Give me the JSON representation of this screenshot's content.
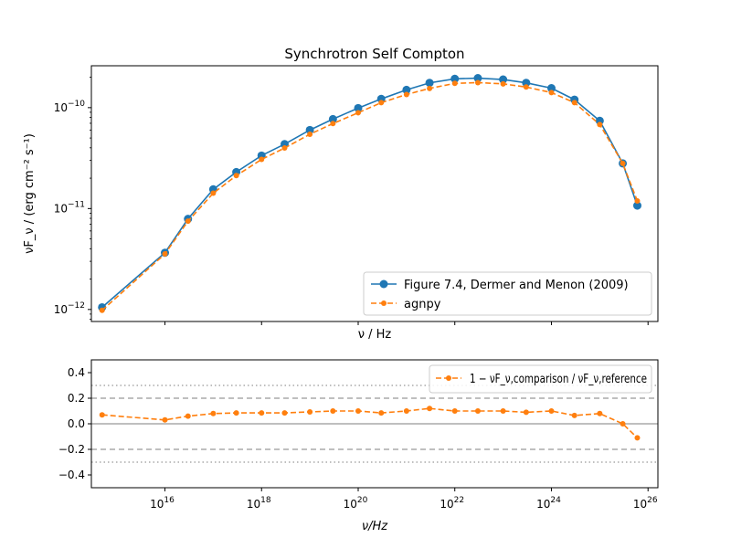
{
  "chart_data": [
    {
      "type": "line",
      "title": "Synchrotron Self Compton",
      "xlabel": "ν / Hz",
      "ylabel": "νF_ν / (erg cm⁻² s⁻¹)",
      "xscale": "log",
      "yscale": "log",
      "xlim": [
        300000000000000.0,
        1.6e+26
      ],
      "ylim": [
        7.6e-13,
        2.6e-10
      ],
      "grid": false,
      "legend_position": "lower-right",
      "x_tick_labels_shown": false,
      "y_ticks": [
        {
          "value": 1e-12,
          "base": "10",
          "exp": "−12"
        },
        {
          "value": 1e-11,
          "base": "10",
          "exp": "−11"
        },
        {
          "value": 1e-10,
          "base": "10",
          "exp": "−10"
        }
      ],
      "series": [
        {
          "name": "Figure 7.4, Dermer and Menon (2009)",
          "color": "#1f77b4",
          "style": "solid",
          "marker": "circle",
          "x": [
            500000000000000.0,
            1e+16,
            3e+16,
            1e+17,
            3e+17,
            1e+18,
            3e+18,
            1e+19,
            3e+19,
            1e+20,
            3e+20,
            1e+21,
            3e+21,
            1e+22,
            3e+22,
            1e+23,
            3e+23,
            1e+24,
            3e+24,
            1e+25,
            3e+25,
            6e+25
          ],
          "y": [
            1.05e-12,
            3.65e-12,
            7.9e-12,
            1.55e-11,
            2.3e-11,
            3.35e-11,
            4.35e-11,
            6e-11,
            7.7e-11,
            9.9e-11,
            1.22e-10,
            1.5e-10,
            1.76e-10,
            1.93e-10,
            1.96e-10,
            1.9e-10,
            1.76e-10,
            1.56e-10,
            1.2e-10,
            7.4e-11,
            2.8e-11,
            1.07e-11
          ]
        },
        {
          "name": "agnpy",
          "color": "#ff7f0e",
          "style": "dashed",
          "marker": "circle-small",
          "x": [
            500000000000000.0,
            1e+16,
            3e+16,
            1e+17,
            3e+17,
            1e+18,
            3e+18,
            1e+19,
            3e+19,
            1e+20,
            3e+20,
            1e+21,
            3e+21,
            1e+22,
            3e+22,
            1e+23,
            3e+23,
            1e+24,
            3e+24,
            1e+25,
            3e+25,
            6e+25
          ],
          "y": [
            9.8e-13,
            3.55e-12,
            7.5e-12,
            1.42e-11,
            2.12e-11,
            3.07e-11,
            3.98e-11,
            5.45e-11,
            6.95e-11,
            8.9e-11,
            1.12e-10,
            1.35e-10,
            1.55e-10,
            1.74e-10,
            1.77e-10,
            1.72e-10,
            1.6e-10,
            1.41e-10,
            1.12e-10,
            6.8e-11,
            2.8e-11,
            1.19e-11
          ]
        }
      ]
    },
    {
      "type": "line",
      "xlabel": "ν/Hz",
      "ylabel": "",
      "xscale": "log",
      "xlim": [
        300000000000000.0,
        1.6e+26
      ],
      "ylim": [
        -0.5,
        0.5
      ],
      "legend_position": "upper-right",
      "x_ticks": [
        {
          "value": 1e+16,
          "base": "10",
          "exp": "16"
        },
        {
          "value": 1e+18,
          "base": "10",
          "exp": "18"
        },
        {
          "value": 1e+20,
          "base": "10",
          "exp": "20"
        },
        {
          "value": 1e+22,
          "base": "10",
          "exp": "22"
        },
        {
          "value": 1e+24,
          "base": "10",
          "exp": "24"
        },
        {
          "value": 1e+26,
          "base": "10",
          "exp": "26"
        }
      ],
      "y_ticks": [
        {
          "value": 0.4,
          "label": "0.4"
        },
        {
          "value": 0.2,
          "label": "0.2"
        },
        {
          "value": 0.0,
          "label": "0.0"
        },
        {
          "value": -0.2,
          "label": "−0.2"
        },
        {
          "value": -0.4,
          "label": "−0.4"
        }
      ],
      "reference_lines": [
        {
          "y": 0.0,
          "style": "solid",
          "color": "#999999"
        },
        {
          "y": 0.2,
          "style": "dashed",
          "color": "#999999"
        },
        {
          "y": -0.2,
          "style": "dashed",
          "color": "#999999"
        },
        {
          "y": 0.3,
          "style": "dotted",
          "color": "#999999"
        },
        {
          "y": -0.3,
          "style": "dotted",
          "color": "#999999"
        }
      ],
      "series": [
        {
          "name": "1 − νF_ν,comparison / νF_ν,reference",
          "color": "#ff7f0e",
          "style": "dashed",
          "marker": "circle-small",
          "x": [
            500000000000000.0,
            1e+16,
            3e+16,
            1e+17,
            3e+17,
            1e+18,
            3e+18,
            1e+19,
            3e+19,
            1e+20,
            3e+20,
            1e+21,
            3e+21,
            1e+22,
            3e+22,
            1e+23,
            3e+23,
            1e+24,
            3e+24,
            1e+25,
            3e+25,
            6e+25
          ],
          "y": [
            0.07,
            0.03,
            0.06,
            0.08,
            0.085,
            0.085,
            0.085,
            0.093,
            0.1,
            0.1,
            0.085,
            0.1,
            0.12,
            0.1,
            0.1,
            0.1,
            0.09,
            0.1,
            0.065,
            0.08,
            0.0,
            -0.11
          ]
        }
      ]
    }
  ]
}
